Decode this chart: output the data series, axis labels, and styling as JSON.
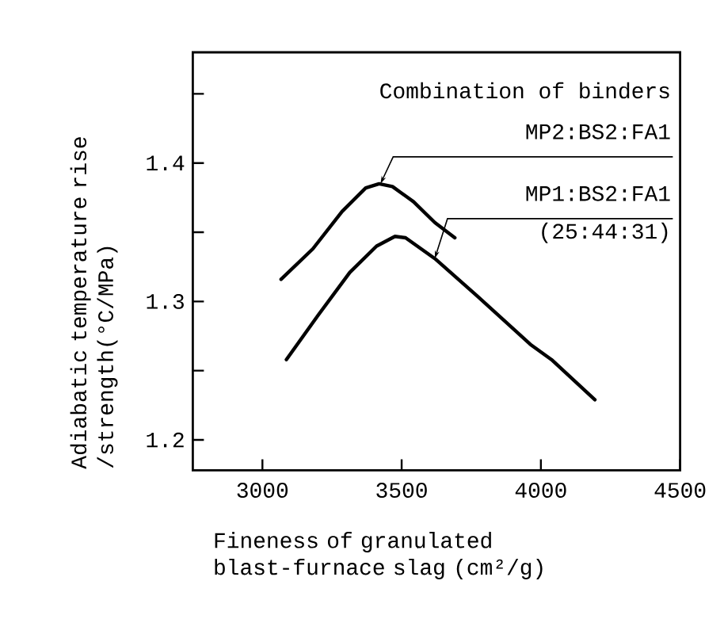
{
  "chart_data": {
    "type": "line",
    "xlabel": "Fineness of granulated blast-furnace slag (cm²/g)",
    "ylabel": "Adiabatic temperature rise /strength(°C/MPa)",
    "xlim": [
      2750,
      4500
    ],
    "xticks": [
      3000,
      3500,
      4000,
      4500
    ],
    "ylim": [
      1.178,
      1.48
    ],
    "yticks": [
      1.2,
      {
        "value": 1.25,
        "label": null
      },
      1.3,
      {
        "value": 1.35,
        "label": null
      },
      1.4,
      {
        "value": 1.45,
        "label": null
      }
    ],
    "grid": false,
    "marker": "none",
    "line_style": "solid",
    "series": [
      {
        "color": "#000000",
        "x": [
          3067,
          3181,
          3286,
          3371,
          3419,
          3467,
          3543,
          3619,
          3691
        ],
        "values": [
          1.316,
          1.338,
          1.365,
          1.382,
          1.385,
          1.383,
          1.372,
          1.357,
          1.346
        ]
      },
      {
        "color": "#000000",
        "x": [
          3086,
          3200,
          3314,
          3410,
          3476,
          3514,
          3619,
          3771,
          3962,
          4038,
          4194
        ],
        "values": [
          1.258,
          1.29,
          1.321,
          1.34,
          1.347,
          1.346,
          1.331,
          1.304,
          1.269,
          1.258,
          1.229
        ]
      }
    ],
    "annotations": [
      "Combination of binders",
      {
        "text": "MP2:BS2:FA1",
        "x": 3424,
        "y": 1.385
      },
      {
        "text": "MP1:BS2:FA1",
        "x": 3619,
        "y": 1.331
      },
      "(25:44:31)"
    ]
  }
}
